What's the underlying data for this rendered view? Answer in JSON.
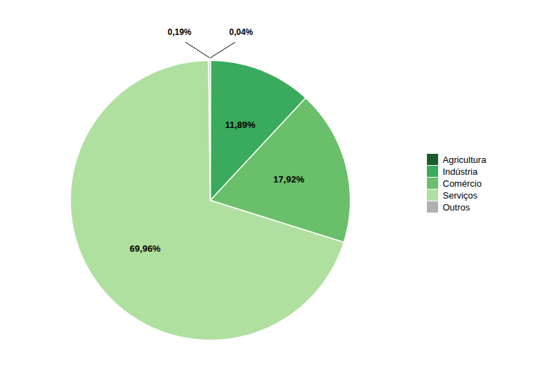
{
  "chart_data": {
    "type": "pie",
    "categories": [
      "Agricultura",
      "Indústria",
      "Comércio",
      "Serviços",
      "Outros"
    ],
    "values": [
      0.04,
      11.89,
      17.92,
      69.96,
      0.19
    ],
    "colors": [
      "#1a5c2a",
      "#3aaa5c",
      "#6abf6a",
      "#b0e0a0",
      "#b0b0b0"
    ],
    "value_labels": [
      "0,04%",
      "11,89%",
      "17,92%",
      "69,96%",
      "0,19%"
    ],
    "data_labels": true,
    "legend": "right"
  }
}
